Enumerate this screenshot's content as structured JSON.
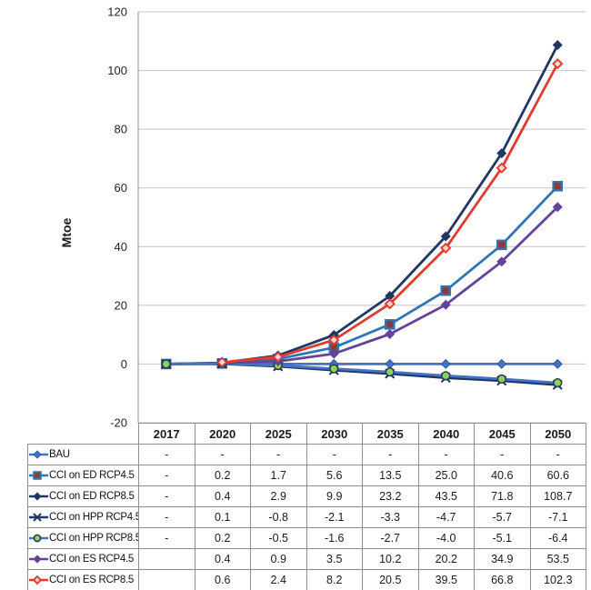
{
  "chart": {
    "ylabel": "Mtoe",
    "yticks": [
      120,
      100,
      80,
      60,
      40,
      20,
      0,
      -20
    ],
    "colors": {
      "gridline": "#c4c4c4",
      "axis": "#a0a0a0",
      "table_border": "#8f8f8f",
      "text": "#1a1a1a"
    }
  },
  "chart_data": {
    "type": "line",
    "title": "",
    "xlabel": "",
    "ylabel": "Mtoe",
    "ylim": [
      -20,
      120
    ],
    "grid": "horizontal",
    "legend_position": "data-table-left-column",
    "categories": [
      "2017",
      "2020",
      "2025",
      "2030",
      "2035",
      "2040",
      "2045",
      "2050"
    ],
    "series": [
      {
        "name": "BAU",
        "color": "#4472c4",
        "marker": "diamond",
        "marker_fill": "#4472c4",
        "marker_stroke": "#2f5597",
        "values": [
          0,
          0,
          0,
          0,
          0,
          0,
          0,
          0
        ],
        "display": [
          "-",
          "-",
          "-",
          "-",
          "-",
          "-",
          "-",
          "-"
        ]
      },
      {
        "name": "CCI on ED RCP4.5",
        "color": "#2e75b6",
        "marker": "square",
        "marker_fill": "#963634",
        "marker_stroke": "#2e75b6",
        "values": [
          0,
          0.2,
          1.7,
          5.6,
          13.5,
          25.0,
          40.6,
          60.6
        ],
        "display": [
          "-",
          "0.2",
          "1.7",
          "5.6",
          "13.5",
          "25.0",
          "40.6",
          "60.6"
        ]
      },
      {
        "name": "CCI on ED RCP8.5",
        "color": "#1f3864",
        "marker": "diamond",
        "marker_fill": "#1f3864",
        "marker_stroke": "#1f3864",
        "values": [
          0,
          0.4,
          2.9,
          9.9,
          23.2,
          43.5,
          71.8,
          108.7
        ],
        "display": [
          "-",
          "0.4",
          "2.9",
          "9.9",
          "23.2",
          "43.5",
          "71.8",
          "108.7"
        ]
      },
      {
        "name": "CCI on HPP RCP4.5",
        "color": "#1f3864",
        "marker": "x",
        "marker_fill": "#1f3864",
        "marker_stroke": "#1f3864",
        "values": [
          0,
          0.1,
          -0.8,
          -2.1,
          -3.3,
          -4.7,
          -5.7,
          -7.1
        ],
        "display": [
          "-",
          "0.1",
          "-0.8",
          "-2.1",
          "-3.3",
          "-4.7",
          "-5.7",
          "-7.1"
        ]
      },
      {
        "name": "CCI on HPP RCP8.5",
        "color": "#4472c4",
        "marker": "circle",
        "marker_fill": "#92d050",
        "marker_stroke": "#1f3864",
        "values": [
          0,
          0.2,
          -0.5,
          -1.6,
          -2.7,
          -4.0,
          -5.1,
          -6.4
        ],
        "display": [
          "-",
          "0.2",
          "-0.5",
          "-1.6",
          "-2.7",
          "-4.0",
          "-5.1",
          "-6.4"
        ]
      },
      {
        "name": "CCI on ES RCP4.5",
        "color": "#63439b",
        "marker": "diamond",
        "marker_fill": "#63439b",
        "marker_stroke": "#63439b",
        "values": [
          null,
          0.4,
          0.9,
          3.5,
          10.2,
          20.2,
          34.9,
          53.5
        ],
        "display": [
          "",
          "0.4",
          "0.9",
          "3.5",
          "10.2",
          "20.2",
          "34.9",
          "53.5"
        ]
      },
      {
        "name": "CCI on ES RCP8.5",
        "color": "#e23b2e",
        "marker": "diamond-open",
        "marker_fill": "#f6d5d3",
        "marker_stroke": "#e23b2e",
        "values": [
          null,
          0.6,
          2.4,
          8.2,
          20.5,
          39.5,
          66.8,
          102.3
        ],
        "display": [
          "",
          "0.6",
          "2.4",
          "8.2",
          "20.5",
          "39.5",
          "66.8",
          "102.3"
        ]
      }
    ]
  }
}
